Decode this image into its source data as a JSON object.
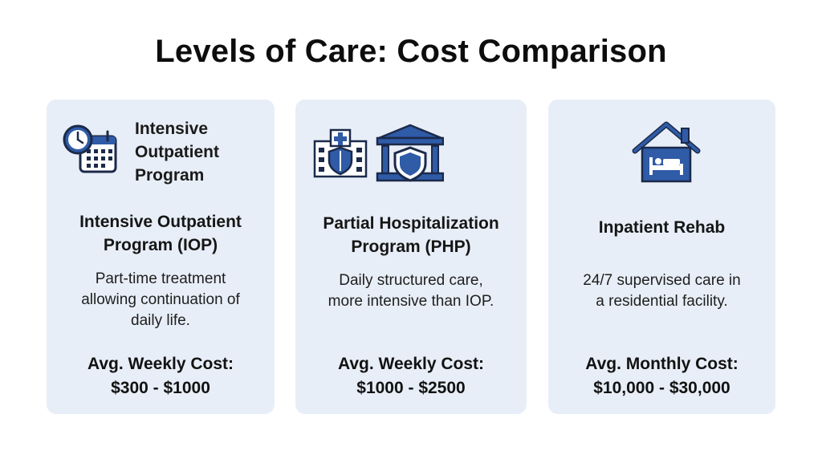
{
  "title": "Levels of Care: Cost Comparison",
  "colors": {
    "card_background": "#e8eef7",
    "icon_blue": "#2f5ba7",
    "icon_dark": "#1b2a4a"
  },
  "cards": [
    {
      "icon": "clock-calendar-icon",
      "icon_label_lines": [
        "Intensive",
        "Outpatient",
        "Program"
      ],
      "heading_lines": [
        "Intensive Outpatient",
        "Program (IOP)"
      ],
      "description_lines": [
        "Part-time treatment",
        "allowing continuation of",
        "daily life."
      ],
      "cost_label": "Avg. Weekly Cost:",
      "cost_value": "$300 - $1000"
    },
    {
      "icon": "hospital-shield-icon",
      "heading_lines": [
        "Partial Hospitalization",
        "Program (PHP)"
      ],
      "description_lines": [
        "Daily structured care,",
        "more intensive than IOP."
      ],
      "cost_label": "Avg. Weekly Cost:",
      "cost_value": "$1000 - $2500"
    },
    {
      "icon": "house-bed-icon",
      "heading_lines": [
        "Inpatient Rehab"
      ],
      "description_lines": [
        "24/7 supervised care in",
        "a residential facility."
      ],
      "cost_label": "Avg. Monthly Cost:",
      "cost_value": "$10,000 - $30,000"
    }
  ]
}
